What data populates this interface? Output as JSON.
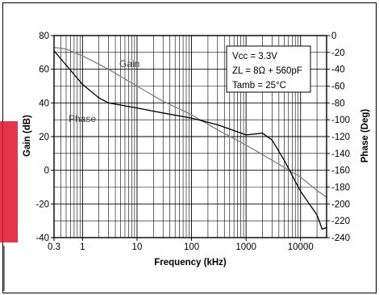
{
  "chart_data": {
    "type": "line",
    "title": "",
    "xlabel": "Frequency (kHz)",
    "ylabel_left": "Gain (dB)",
    "ylabel_right": "Phase (Deg)",
    "x_scale": "log",
    "xlim": [
      0.3,
      30000
    ],
    "ylim_left": [
      -40,
      80
    ],
    "ylim_right": [
      -240,
      0
    ],
    "grid": true,
    "x_ticks": [
      {
        "value": 0.3,
        "label": "0.3"
      },
      {
        "value": 1,
        "label": "1"
      },
      {
        "value": 10,
        "label": "10"
      },
      {
        "value": 100,
        "label": "100"
      },
      {
        "value": 1000,
        "label": "1000"
      },
      {
        "value": 10000,
        "label": "10000"
      }
    ],
    "y_ticks_left": [
      -40,
      -20,
      0,
      20,
      40,
      60,
      80
    ],
    "y_ticks_right": [
      0,
      -20,
      -40,
      -60,
      -80,
      -100,
      -120,
      -140,
      -160,
      -180,
      -200,
      -220,
      -240
    ],
    "series": [
      {
        "name": "Gain",
        "axis": "left",
        "color": "#808080",
        "points": [
          [
            0.3,
            73
          ],
          [
            0.5,
            72
          ],
          [
            1,
            68
          ],
          [
            3,
            60
          ],
          [
            10,
            50
          ],
          [
            30,
            41
          ],
          [
            100,
            33
          ],
          [
            300,
            24
          ],
          [
            1000,
            15
          ],
          [
            3000,
            6
          ],
          [
            10000,
            -4
          ],
          [
            20000,
            -12
          ],
          [
            30000,
            -16
          ]
        ]
      },
      {
        "name": "Phase",
        "axis": "right",
        "color": "#000000",
        "points": [
          [
            0.3,
            -18
          ],
          [
            0.5,
            -35
          ],
          [
            1,
            -58
          ],
          [
            2,
            -74
          ],
          [
            3,
            -80
          ],
          [
            10,
            -86
          ],
          [
            30,
            -92
          ],
          [
            100,
            -98
          ],
          [
            300,
            -106
          ],
          [
            1000,
            -118
          ],
          [
            2000,
            -116
          ],
          [
            3000,
            -124
          ],
          [
            5000,
            -148
          ],
          [
            10000,
            -185
          ],
          [
            20000,
            -213
          ],
          [
            25000,
            -230
          ],
          [
            30000,
            -228
          ]
        ]
      }
    ],
    "annotations": [
      {
        "text": "Gain",
        "series": "Gain"
      },
      {
        "text": "Phase",
        "series": "Phase"
      }
    ],
    "legend_box": {
      "position": "top-right",
      "lines": [
        "Vcc = 3.3V",
        "ZL = 8Ω + 560pF",
        "Tamb = 25°C"
      ]
    }
  }
}
